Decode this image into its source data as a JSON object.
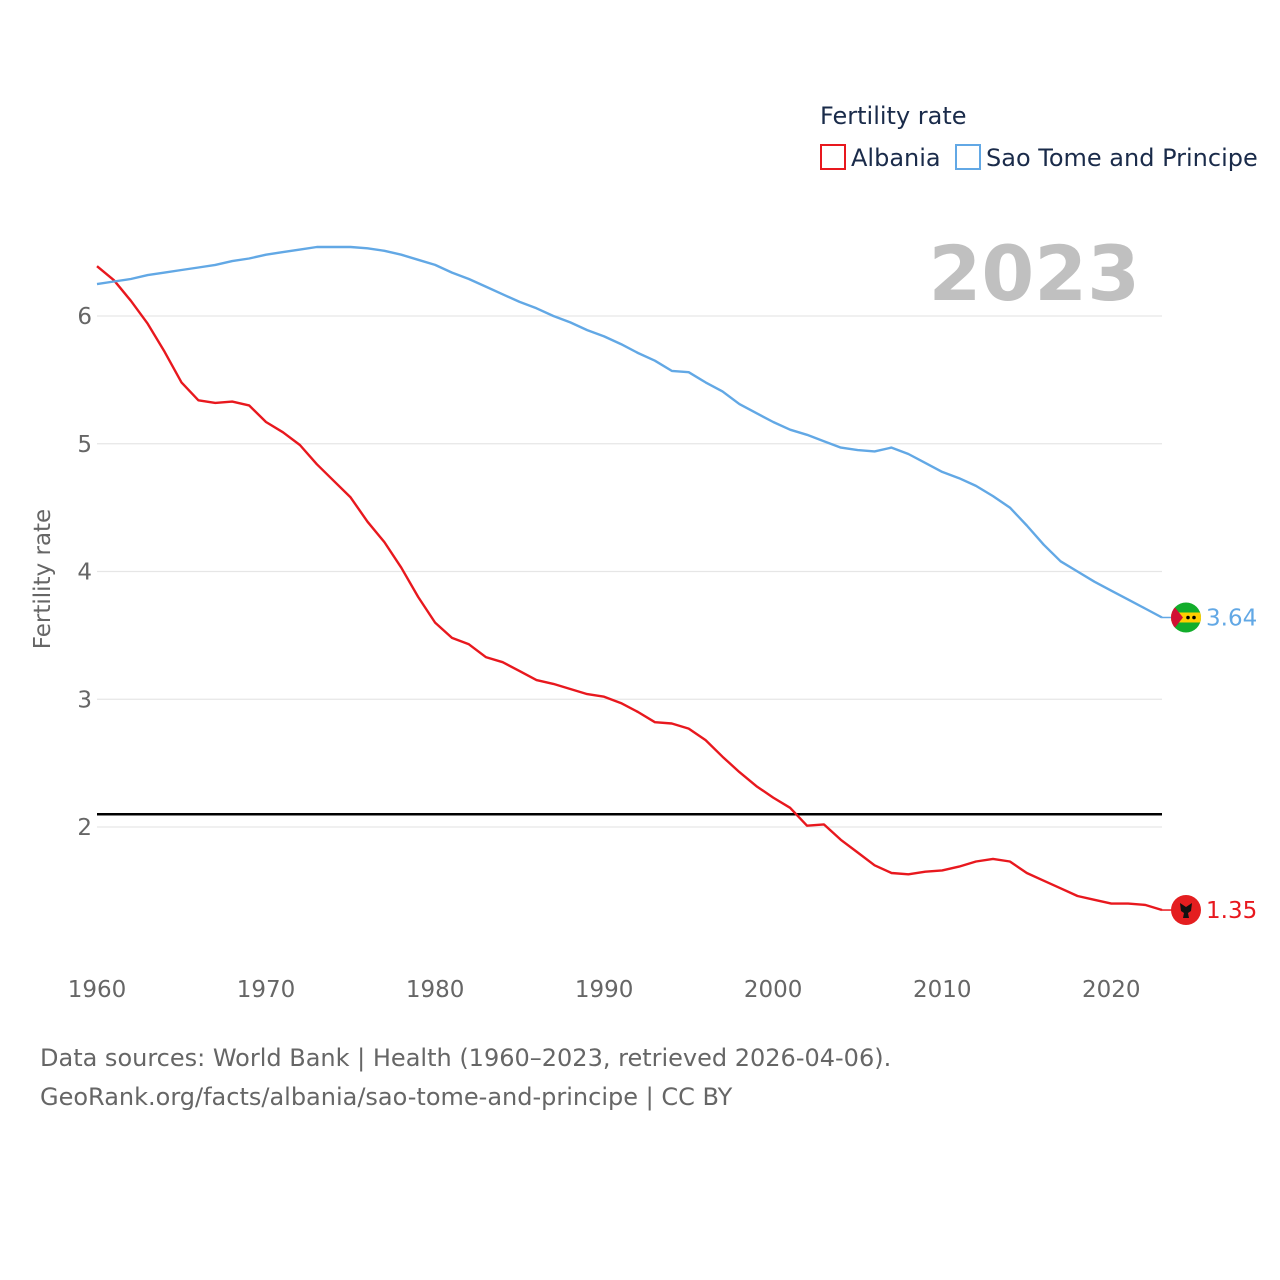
{
  "chart_data": {
    "type": "line",
    "legend_title": "Fertility rate",
    "legend_position": "top-right",
    "ylabel": "Fertility rate",
    "xlabel": "",
    "year_stamp": "2023",
    "xlim": [
      1960,
      2023
    ],
    "ylim": [
      1,
      6.6
    ],
    "xticks": [
      1960,
      1970,
      1980,
      1990,
      2000,
      2010,
      2020
    ],
    "yticks": [
      2,
      3,
      4,
      5,
      6
    ],
    "grid": true,
    "reference_line": {
      "y": 2.1,
      "color": "#000000"
    },
    "x": [
      1960,
      1961,
      1962,
      1963,
      1964,
      1965,
      1966,
      1967,
      1968,
      1969,
      1970,
      1971,
      1972,
      1973,
      1974,
      1975,
      1976,
      1977,
      1978,
      1979,
      1980,
      1981,
      1982,
      1983,
      1984,
      1985,
      1986,
      1987,
      1988,
      1989,
      1990,
      1991,
      1992,
      1993,
      1994,
      1995,
      1996,
      1997,
      1998,
      1999,
      2000,
      2001,
      2002,
      2003,
      2004,
      2005,
      2006,
      2007,
      2008,
      2009,
      2010,
      2011,
      2012,
      2013,
      2014,
      2015,
      2016,
      2017,
      2018,
      2019,
      2020,
      2021,
      2022,
      2023
    ],
    "series": [
      {
        "name": "Albania",
        "color": "#e8181e",
        "end_label": "1.35",
        "flag": "albania-flag-icon",
        "values": [
          6.39,
          6.28,
          6.12,
          5.94,
          5.72,
          5.48,
          5.34,
          5.32,
          5.33,
          5.3,
          5.17,
          5.09,
          4.99,
          4.84,
          4.71,
          4.58,
          4.39,
          4.23,
          4.03,
          3.8,
          3.6,
          3.48,
          3.43,
          3.33,
          3.29,
          3.22,
          3.15,
          3.12,
          3.08,
          3.04,
          3.02,
          2.97,
          2.9,
          2.82,
          2.81,
          2.77,
          2.68,
          2.55,
          2.43,
          2.32,
          2.23,
          2.15,
          2.01,
          2.02,
          1.9,
          1.8,
          1.7,
          1.64,
          1.63,
          1.65,
          1.66,
          1.69,
          1.73,
          1.75,
          1.73,
          1.64,
          1.58,
          1.52,
          1.46,
          1.43,
          1.4,
          1.4,
          1.39,
          1.35
        ]
      },
      {
        "name": "Sao Tome and Principe",
        "color": "#62a8e5",
        "end_label": "3.64",
        "flag": "sao-tome-flag-icon",
        "values": [
          6.25,
          6.27,
          6.29,
          6.32,
          6.34,
          6.36,
          6.38,
          6.4,
          6.43,
          6.45,
          6.48,
          6.5,
          6.52,
          6.54,
          6.54,
          6.54,
          6.53,
          6.51,
          6.48,
          6.44,
          6.4,
          6.34,
          6.29,
          6.23,
          6.17,
          6.11,
          6.06,
          6.0,
          5.95,
          5.89,
          5.84,
          5.78,
          5.71,
          5.65,
          5.57,
          5.56,
          5.48,
          5.41,
          5.31,
          5.24,
          5.17,
          5.11,
          5.07,
          5.02,
          4.97,
          4.95,
          4.94,
          4.97,
          4.92,
          4.85,
          4.78,
          4.73,
          4.67,
          4.59,
          4.5,
          4.36,
          4.21,
          4.08,
          4.0,
          3.92,
          3.85,
          3.78,
          3.71,
          3.64
        ]
      }
    ]
  },
  "footer": {
    "sources": "Data sources: World Bank | Health (1960–2023, retrieved 2026-04-06).",
    "url": "GeoRank.org/facts/albania/sao-tome-and-principe | CC BY"
  }
}
